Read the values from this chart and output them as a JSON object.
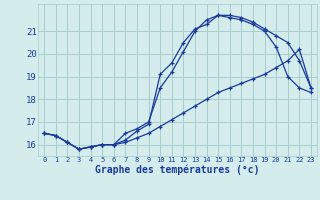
{
  "title": "Graphe des températures (°c)",
  "bg_color": "#d4ecec",
  "grid_color": "#a8cccc",
  "line_color": "#1a3a9a",
  "xlim": [
    -0.5,
    23.5
  ],
  "ylim": [
    15.5,
    22.2
  ],
  "xticks": [
    0,
    1,
    2,
    3,
    4,
    5,
    6,
    7,
    8,
    9,
    10,
    11,
    12,
    13,
    14,
    15,
    16,
    17,
    18,
    19,
    20,
    21,
    22,
    23
  ],
  "yticks": [
    16,
    17,
    18,
    19,
    20,
    21
  ],
  "curve1_x": [
    0,
    1,
    2,
    3,
    4,
    5,
    6,
    7,
    8,
    9,
    10,
    11,
    12,
    13,
    14,
    15,
    16,
    17,
    18,
    19,
    20,
    21,
    22,
    23
  ],
  "curve1_y": [
    16.5,
    16.4,
    16.1,
    15.8,
    15.9,
    16.0,
    16.0,
    16.1,
    16.3,
    16.5,
    16.8,
    17.1,
    17.4,
    17.7,
    18.0,
    18.3,
    18.5,
    18.7,
    18.9,
    19.1,
    19.4,
    19.7,
    20.2,
    18.5
  ],
  "curve2_x": [
    0,
    1,
    2,
    3,
    4,
    5,
    6,
    7,
    8,
    9,
    10,
    11,
    12,
    13,
    14,
    15,
    16,
    17,
    18,
    19,
    20,
    21,
    22,
    23
  ],
  "curve2_y": [
    16.5,
    16.4,
    16.1,
    15.8,
    15.9,
    16.0,
    16.0,
    16.2,
    16.6,
    16.9,
    19.1,
    19.6,
    20.5,
    21.1,
    21.3,
    21.7,
    21.7,
    21.6,
    21.4,
    21.1,
    20.8,
    20.5,
    19.7,
    18.5
  ],
  "curve3_x": [
    0,
    1,
    2,
    3,
    4,
    5,
    6,
    7,
    8,
    9,
    10,
    11,
    12,
    13,
    14,
    15,
    16,
    17,
    18,
    19,
    20,
    21,
    22,
    23
  ],
  "curve3_y": [
    16.5,
    16.4,
    16.1,
    15.8,
    15.9,
    16.0,
    16.0,
    16.5,
    16.7,
    17.0,
    18.5,
    19.2,
    20.1,
    21.0,
    21.5,
    21.7,
    21.6,
    21.5,
    21.3,
    21.0,
    20.3,
    19.0,
    18.5,
    18.3
  ]
}
